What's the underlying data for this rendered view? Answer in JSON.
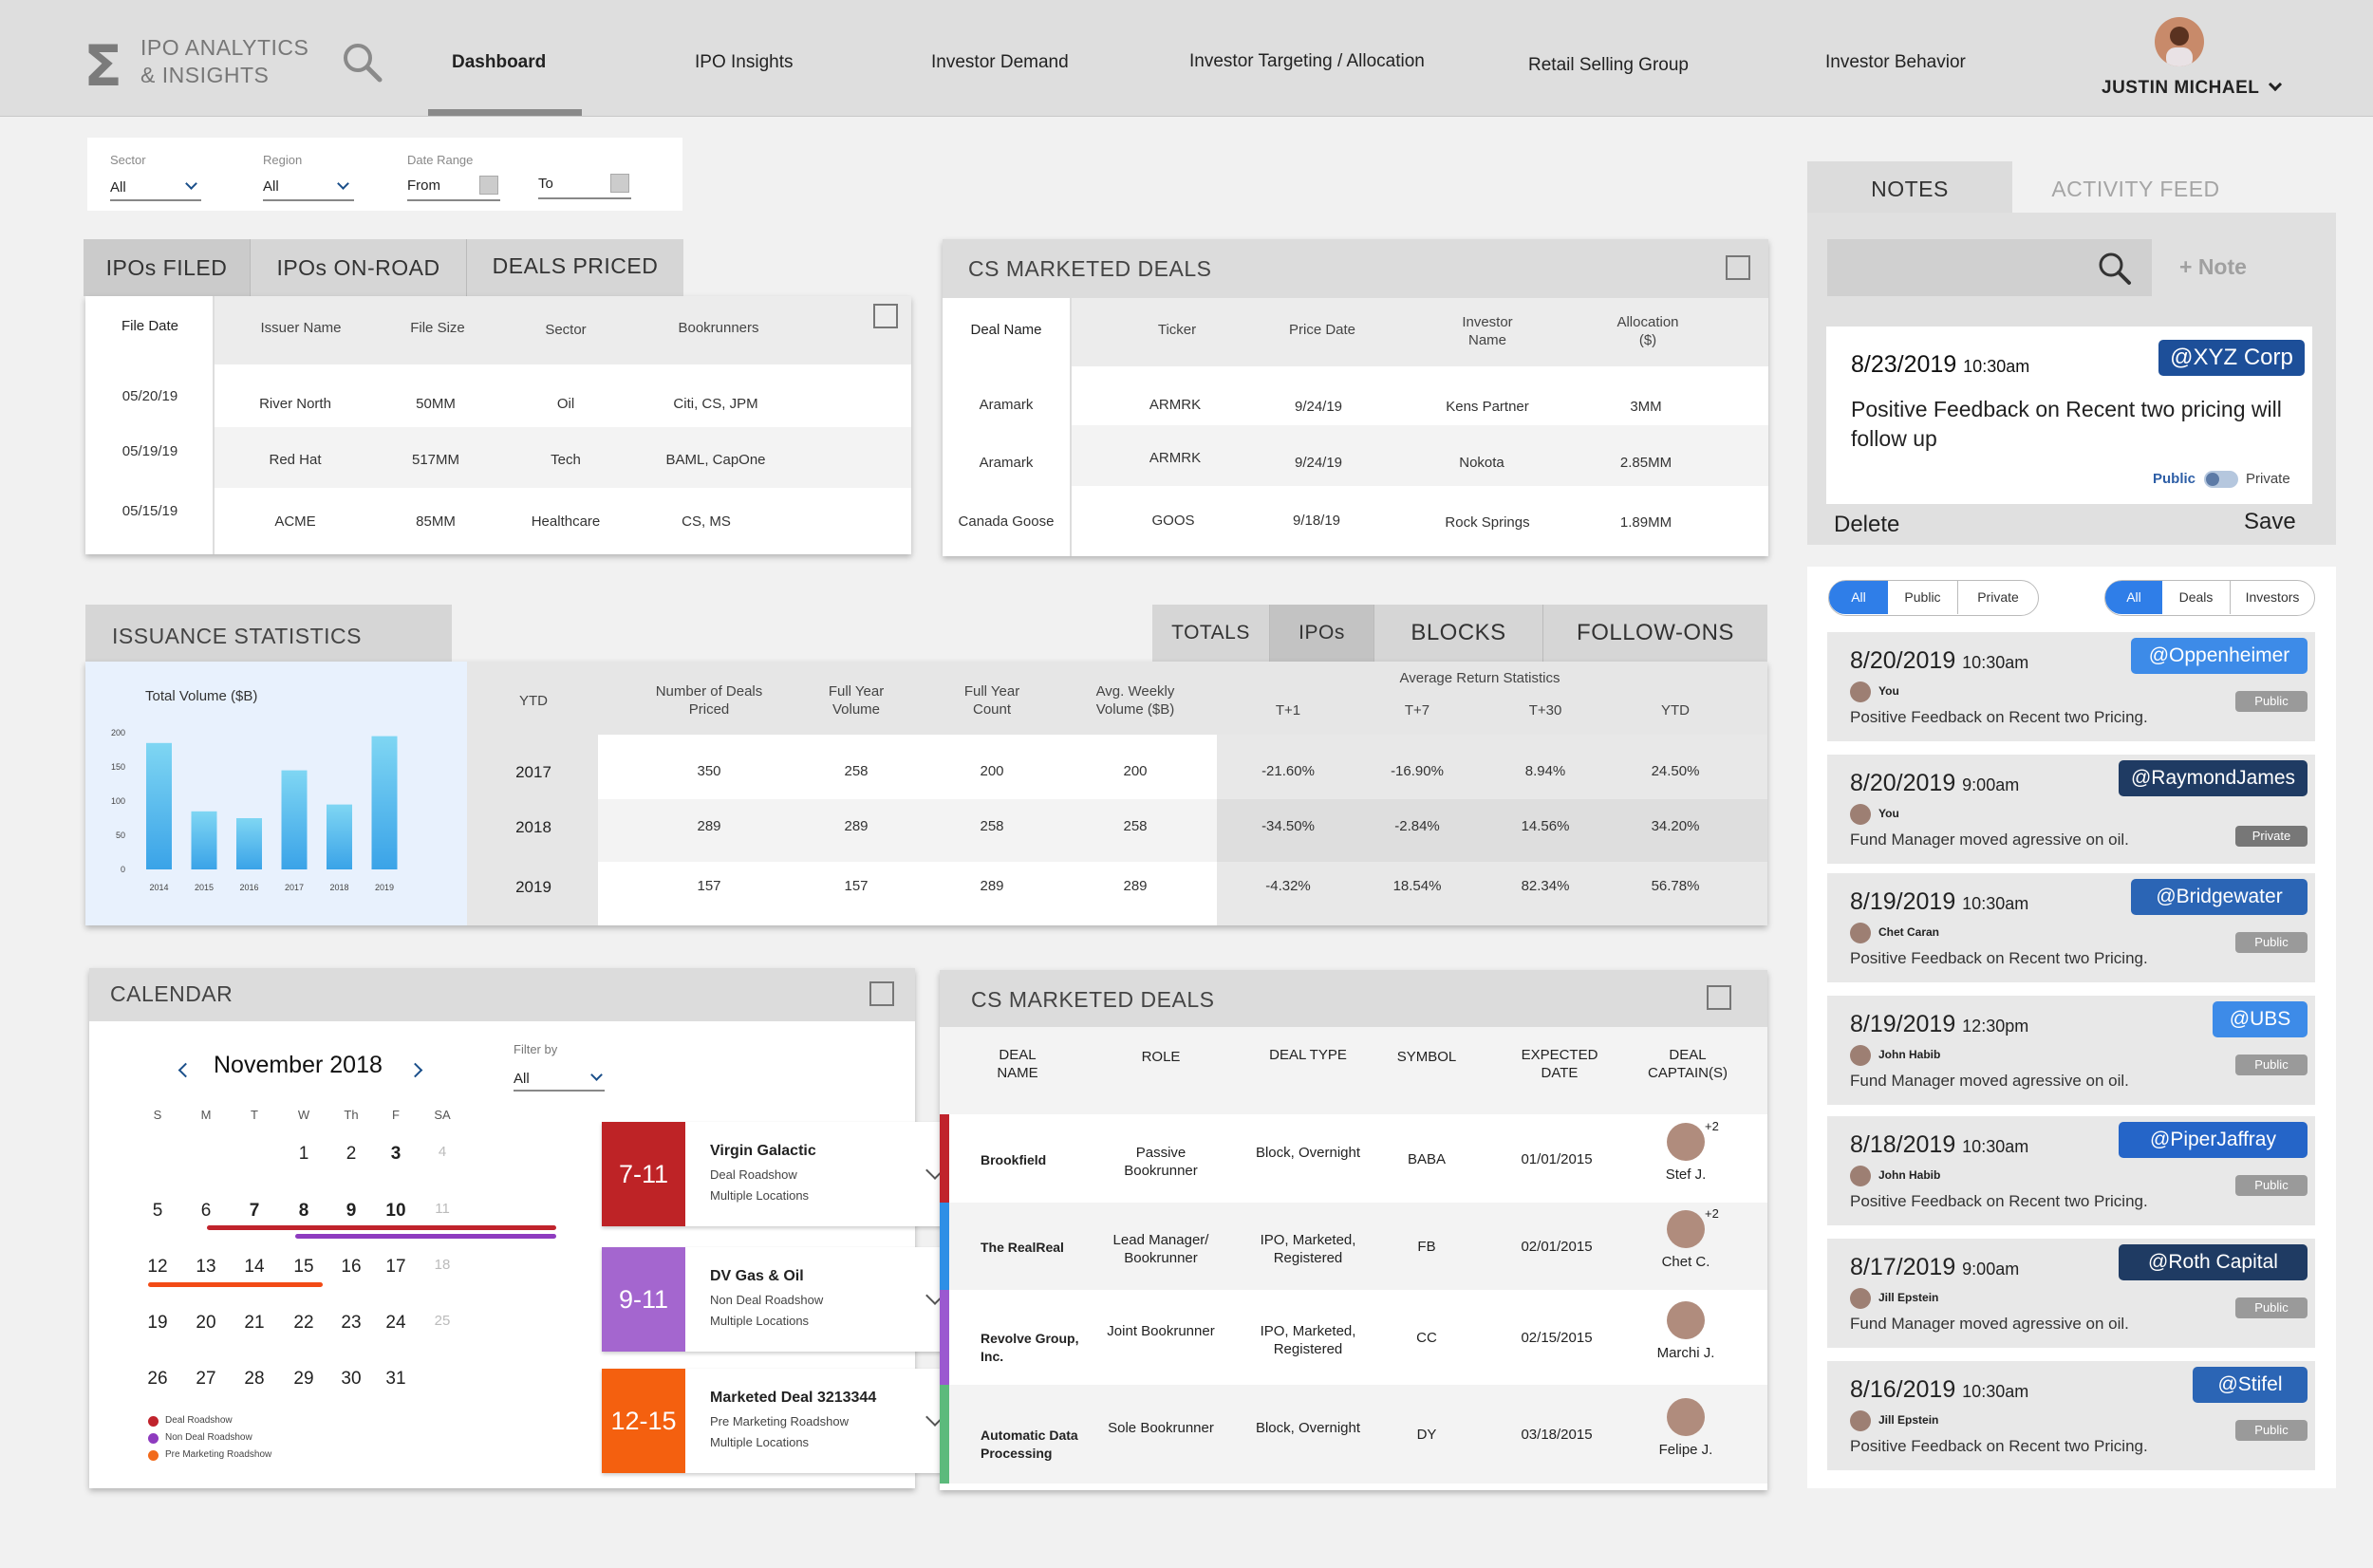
{
  "nav": {
    "logo_line1": "IPO ANALYTICS",
    "logo_line2": "& INSIGHTS",
    "links": [
      "Dashboard",
      "IPO Insights",
      "Investor Demand",
      "Investor Targeting / Allocation",
      "Retail Selling Group",
      "Investor Behavior"
    ],
    "active": "Dashboard",
    "user": "JUSTIN MICHAEL"
  },
  "filters": {
    "sector_label": "Sector",
    "sector_value": "All",
    "region_label": "Region",
    "region_value": "All",
    "date_label": "Date Range",
    "from": "From",
    "to": "To"
  },
  "ipo_panel": {
    "tabs": [
      "IPOs FILED",
      "IPOs ON-ROAD",
      "DEALS PRICED"
    ],
    "columns": [
      "File Date",
      "Issuer Name",
      "File Size",
      "Sector",
      "Bookrunners"
    ],
    "rows": [
      [
        "05/20/19",
        "River North",
        "50MM",
        "Oil",
        "Citi, CS, JPM"
      ],
      [
        "05/19/19",
        "Red Hat",
        "517MM",
        "Tech",
        "BAML, CapOne"
      ],
      [
        "05/15/19",
        "ACME",
        "85MM",
        "Healthcare",
        "CS, MS"
      ]
    ]
  },
  "cs_marketed_top": {
    "title": "CS MARKETED DEALS",
    "columns": [
      "Deal Name",
      "Ticker",
      "Price Date",
      "Investor Name",
      "Allocation ($)"
    ],
    "rows": [
      [
        "Aramark",
        "ARMRK",
        "9/24/19",
        "Kens Partner",
        "3MM"
      ],
      [
        "Aramark",
        "ARMRK",
        "9/24/19",
        "Nokota",
        "2.85MM"
      ],
      [
        "Canada Goose",
        "GOOS",
        "9/18/19",
        "Rock Springs",
        "1.89MM"
      ]
    ]
  },
  "issuance": {
    "title": "ISSUANCE STATISTICS",
    "tabs": [
      "TOTALS",
      "IPOs",
      "BLOCKS",
      "FOLLOW-ONS"
    ],
    "active_tab": "IPOs",
    "chart_title": "Total Volume ($B)",
    "columns": [
      "YTD",
      "Number of Deals Priced",
      "Full Year Volume",
      "Full Year Count",
      "Avg. Weekly Volume ($B)"
    ],
    "return_header": "Average Return Statistics",
    "return_columns": [
      "T+1",
      "T+7",
      "T+30",
      "YTD"
    ],
    "rows": [
      [
        "2017",
        "350",
        "258",
        "200",
        "200",
        "-21.60%",
        "-16.90%",
        "8.94%",
        "24.50%"
      ],
      [
        "2018",
        "289",
        "289",
        "258",
        "258",
        "-34.50%",
        "-2.84%",
        "14.56%",
        "34.20%"
      ],
      [
        "2019",
        "157",
        "157",
        "289",
        "289",
        "-4.32%",
        "18.54%",
        "82.34%",
        "56.78%"
      ]
    ]
  },
  "chart_data": {
    "type": "bar",
    "title": "Total Volume ($B)",
    "categories": [
      "2014",
      "2015",
      "2016",
      "2017",
      "2018",
      "2019"
    ],
    "values": [
      185,
      85,
      75,
      145,
      95,
      195
    ],
    "ylim": [
      0,
      200
    ],
    "yticks": [
      "0",
      "50",
      "100",
      "150",
      "200"
    ],
    "grid": false,
    "colors": {
      "top": "#7fd6f3",
      "bottom": "#3aa3e8"
    }
  },
  "calendar": {
    "title": "CALENDAR",
    "month": "November 2018",
    "filter_label": "Filter by",
    "filter_value": "All",
    "weekdays": [
      "S",
      "M",
      "T",
      "W",
      "Th",
      "F",
      "SA"
    ],
    "weeks": [
      [
        "",
        "",
        "",
        "1",
        "2",
        "3",
        "4"
      ],
      [
        "5",
        "6",
        "7",
        "8",
        "9",
        "10",
        "11"
      ],
      [
        "12",
        "13",
        "14",
        "15",
        "16",
        "17",
        "18"
      ],
      [
        "19",
        "20",
        "21",
        "22",
        "23",
        "24",
        "25"
      ],
      [
        "26",
        "27",
        "28",
        "29",
        "30",
        "31",
        ""
      ]
    ],
    "legend": [
      "Deal Roadshow",
      "Non Deal Roadshow",
      "Pre Marketing Roadshow"
    ],
    "legend_colors": [
      "#c0232c",
      "#8e3bbf",
      "#f26a1b"
    ],
    "events": [
      {
        "date": "7-11",
        "title": "Virgin Galactic",
        "sub1": "Deal Roadshow",
        "sub2": "Multiple Locations",
        "color": "#be2326"
      },
      {
        "date": "9-11",
        "title": "DV Gas & Oil",
        "sub1": "Non Deal Roadshow",
        "sub2": "Multiple Locations",
        "color": "#a466cf"
      },
      {
        "date": "12-15",
        "title": "Marketed Deal 3213344",
        "sub1": "Pre Marketing Roadshow",
        "sub2": "Multiple Locations",
        "color": "#f4600f"
      }
    ]
  },
  "cs_marketed_bottom": {
    "title": "CS MARKETED DEALS",
    "columns": [
      "DEAL NAME",
      "ROLE",
      "DEAL TYPE",
      "SYMBOL",
      "EXPECTED DATE",
      "DEAL CAPTAIN(S)"
    ],
    "rows": [
      {
        "name": "Brookfield",
        "role": "Passive Bookrunner",
        "type": "Block, Overnight",
        "symbol": "BABA",
        "date": "01/01/2015",
        "captain": "Stef J.",
        "extra": "+2",
        "color": "#c0232c"
      },
      {
        "name": "The RealReal",
        "role": "Lead Manager/ Bookrunner",
        "type": "IPO, Marketed, Registered",
        "symbol": "FB",
        "date": "02/01/2015",
        "captain": "Chet C.",
        "extra": "+2",
        "color": "#2e8fe6"
      },
      {
        "name": "Revolve Group, Inc.",
        "role": "Joint Bookrunner",
        "type": "IPO, Marketed, Registered",
        "symbol": "CC",
        "date": "02/15/2015",
        "captain": "Marchi J.",
        "extra": "",
        "color": "#9b59d0"
      },
      {
        "name": "Automatic Data Processing",
        "role": "Sole Bookrunner",
        "type": "Block, Overnight",
        "symbol": "DY",
        "date": "03/18/2015",
        "captain": "Felipe J.",
        "extra": "",
        "color": "#5cba7c"
      }
    ]
  },
  "notes": {
    "tabs": [
      "NOTES",
      "ACTIVITY FEED"
    ],
    "add_note": "+ Note",
    "card": {
      "date": "8/23/2019",
      "time": "10:30am",
      "tag": "@XYZ Corp",
      "text": "Positive Feedback on Recent two pricing will follow up",
      "public": "Public",
      "private": "Private"
    },
    "delete": "Delete",
    "save": "Save"
  },
  "feed": {
    "filter1": [
      "All",
      "Public",
      "Private"
    ],
    "filter2": [
      "All",
      "Deals",
      "Investors"
    ],
    "items": [
      {
        "date": "8/20/2019",
        "time": "10:30am",
        "tag": "@Oppenheimer",
        "tag_color": "#3d8be8",
        "user": "You",
        "vis": "Public",
        "msg": "Positive Feedback on Recent two Pricing."
      },
      {
        "date": "8/20/2019",
        "time": "9:00am",
        "tag": "@RaymondJames",
        "tag_color": "#1f3b63",
        "user": "You",
        "vis": "Private",
        "msg": "Fund Manager moved agressive on oil."
      },
      {
        "date": "8/19/2019",
        "time": "10:30am",
        "tag": "@Bridgewater",
        "tag_color": "#2b65b5",
        "user": "Chet Caran",
        "vis": "Public",
        "msg": "Positive Feedback on Recent two Pricing."
      },
      {
        "date": "8/19/2019",
        "time": "12:30pm",
        "tag": "@UBS",
        "tag_color": "#3d8be8",
        "user": "John Habib",
        "vis": "Public",
        "msg": "Fund Manager moved agressive on oil."
      },
      {
        "date": "8/18/2019",
        "time": "10:30am",
        "tag": "@PiperJaffray",
        "tag_color": "#2565c8",
        "user": "John Habib",
        "vis": "Public",
        "msg": "Positive Feedback on Recent two Pricing."
      },
      {
        "date": "8/17/2019",
        "time": "9:00am",
        "tag": "@Roth Capital",
        "tag_color": "#1f3b63",
        "user": "Jill Epstein",
        "vis": "Public",
        "msg": "Fund Manager moved agressive on oil."
      },
      {
        "date": "8/16/2019",
        "time": "10:30am",
        "tag": "@Stifel",
        "tag_color": "#2b65b5",
        "user": "Jill Epstein",
        "vis": "Public",
        "msg": "Positive Feedback on Recent two Pricing."
      }
    ]
  }
}
